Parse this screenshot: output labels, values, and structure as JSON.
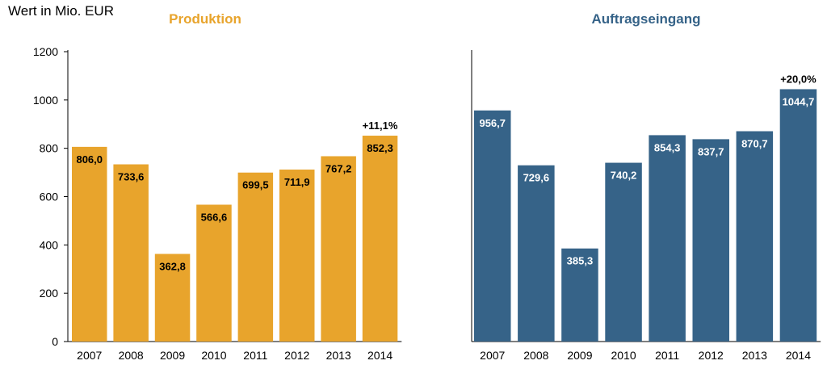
{
  "unit_label": "Wert in Mio. EUR",
  "chart_data": [
    {
      "type": "bar",
      "title": "Produktion",
      "categories": [
        "2007",
        "2008",
        "2009",
        "2010",
        "2011",
        "2012",
        "2013",
        "2014"
      ],
      "values": [
        806.0,
        733.6,
        362.8,
        566.6,
        699.5,
        711.9,
        767.2,
        852.3
      ],
      "value_labels": [
        "806,0",
        "733,6",
        "362,8",
        "566,6",
        "699,5",
        "711,9",
        "767,2",
        "852,3"
      ],
      "annotation": {
        "category": "2014",
        "text": "+11,1%"
      },
      "ylim": [
        0,
        1200
      ],
      "yticks": [
        0,
        200,
        400,
        600,
        800,
        1000,
        1200
      ],
      "y_axis_visible": true,
      "grid": false,
      "bar_color": "#E8A42C",
      "title_color": "#E8A42C",
      "label_color": "#000000"
    },
    {
      "type": "bar",
      "title": "Auftragseingang",
      "categories": [
        "2007",
        "2008",
        "2009",
        "2010",
        "2011",
        "2012",
        "2013",
        "2014"
      ],
      "values": [
        956.7,
        729.6,
        385.3,
        740.2,
        854.3,
        837.7,
        870.7,
        1044.7
      ],
      "value_labels": [
        "956,7",
        "729,6",
        "385,3",
        "740,2",
        "854,3",
        "837,7",
        "870,7",
        "1044,7"
      ],
      "annotation": {
        "category": "2014",
        "text": "+20,0%"
      },
      "ylim": [
        0,
        1200
      ],
      "y_axis_visible": false,
      "grid": false,
      "bar_color": "#366388",
      "title_color": "#366388",
      "label_color": "#ffffff"
    }
  ]
}
